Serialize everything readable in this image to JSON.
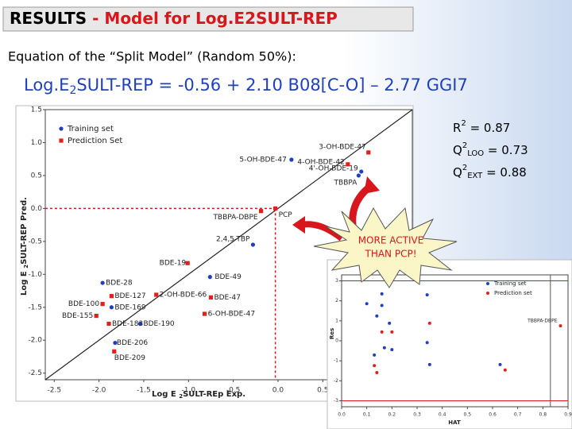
{
  "title": {
    "lead": "RESULTS",
    "rest": " - Model for Log.E2SULT-REP"
  },
  "subtitle": "Equation of the “Split Model” (Random 50%):",
  "equation": {
    "pre": "Log.E",
    "sub": "2",
    "post": "SULT-REP = -0.56 + 2.10 B08[C-O] – 2.77 GGI7"
  },
  "stats": [
    {
      "base": "R",
      "sup": "2",
      "sub": "",
      "text": " = 0.87"
    },
    {
      "base": "Q",
      "sup": "2",
      "sub": "LOO",
      "text": " = 0.73"
    },
    {
      "base": "Q",
      "sup": "2",
      "sub": "EXT",
      "text": " = 0.88"
    }
  ],
  "annotation": [
    "MORE ACTIVE",
    "THAN PCP!"
  ],
  "chart_data": [
    {
      "type": "scatter",
      "x_label": [
        "Log E ",
        "2",
        "SULT-REp Exp."
      ],
      "y_label": [
        "Log E ",
        "2",
        "SULT-REP Pred."
      ],
      "xlim": [
        -2.6,
        1.5
      ],
      "ylim": [
        -2.6,
        1.5
      ],
      "xticks": [
        -2.5,
        {
          "value": -2,
          "label": "-2.0"
        },
        -1.5,
        {
          "value": -1,
          "label": "-1.0"
        },
        -0.5,
        {
          "value": 0,
          "label": "0.0"
        },
        0.5
      ],
      "yticks": [
        1.5,
        {
          "value": 1,
          "label": "1.0"
        },
        0.5,
        {
          "value": 0,
          "label": "0.0"
        },
        -0.5,
        {
          "value": -1,
          "label": "-1.0"
        },
        -1.5,
        {
          "value": -2,
          "label": "-2.0"
        },
        -2.5
      ],
      "series": [
        {
          "name": "Training set",
          "color": "#1f3fbf",
          "marker": "circle",
          "labels": [
            "5-OH-BDE-47",
            "4'-OH-BDE-19",
            "TBBPA",
            "2,4,5-TBP",
            "BDE-49",
            "BDE-28",
            "BDE-169",
            "BDE-190",
            "BDE-206"
          ],
          "x": [
            0.15,
            0.93,
            0.9,
            -0.28,
            -0.76,
            -1.96,
            -1.86,
            -1.54,
            -1.82
          ],
          "values": [
            0.74,
            0.56,
            0.5,
            -0.55,
            -1.04,
            -1.13,
            -1.5,
            -1.75,
            -2.04
          ]
        },
        {
          "name": "Prediction Set",
          "color": "#e0201c",
          "marker": "square",
          "labels": [
            "3-OH-BDE-47",
            "4-OH-BDE-42",
            "TBBPA-DBPE",
            "PCP",
            "BDE-19",
            "BDE-127",
            "2-OH-BDE-66",
            "BDE-47",
            "BDE-100",
            "6-OH-BDE-47",
            "BDE-155",
            "BDE-183",
            "BDE-209"
          ],
          "x": [
            1.01,
            0.78,
            -0.19,
            -0.03,
            -1.01,
            -1.86,
            -1.36,
            -0.75,
            -1.96,
            -0.82,
            -2.03,
            -1.89,
            -1.83
          ],
          "values": [
            0.85,
            0.67,
            -0.04,
            0.0,
            -0.83,
            -1.33,
            -1.31,
            -1.35,
            -1.45,
            -1.6,
            -1.63,
            -1.75,
            -2.17
          ]
        }
      ]
    },
    {
      "type": "scatter",
      "x_label": [
        "HAT"
      ],
      "y_label": [
        "Res"
      ],
      "xlim": [
        0,
        0.9
      ],
      "ylim": [
        -3.3,
        3.3
      ],
      "xticks": [
        {
          "value": 0,
          "label": "0.0"
        },
        0.1,
        0.2,
        0.3,
        0.4,
        0.5,
        0.6,
        0.7,
        0.8,
        0.9
      ],
      "yticks": [
        3,
        2,
        1,
        0,
        -1,
        -2,
        -3
      ],
      "hlines": [
        3,
        -3
      ],
      "vline": 0.83,
      "series": [
        {
          "name": "Training set",
          "color": "#1f3fbf",
          "marker": "circle",
          "x": [
            0.1,
            0.16,
            0.16,
            0.14,
            0.19,
            0.34,
            0.13,
            0.17,
            0.2,
            0.34,
            0.35,
            0.63
          ],
          "values": [
            1.86,
            2.35,
            1.77,
            1.24,
            0.88,
            2.3,
            -0.71,
            -0.35,
            -0.44,
            -0.09,
            -1.19,
            -1.19
          ]
        },
        {
          "name": "Prediction set",
          "color": "#e0201c",
          "marker": "circle",
          "x": [
            0.2,
            0.16,
            0.35,
            0.13,
            0.14,
            0.65,
            0.87
          ],
          "values": [
            0.44,
            0.44,
            0.88,
            -1.24,
            -1.59,
            -1.46,
            0.75
          ],
          "labels": [
            null,
            null,
            null,
            null,
            null,
            null,
            "TBBPA-DBPE"
          ]
        }
      ]
    }
  ]
}
